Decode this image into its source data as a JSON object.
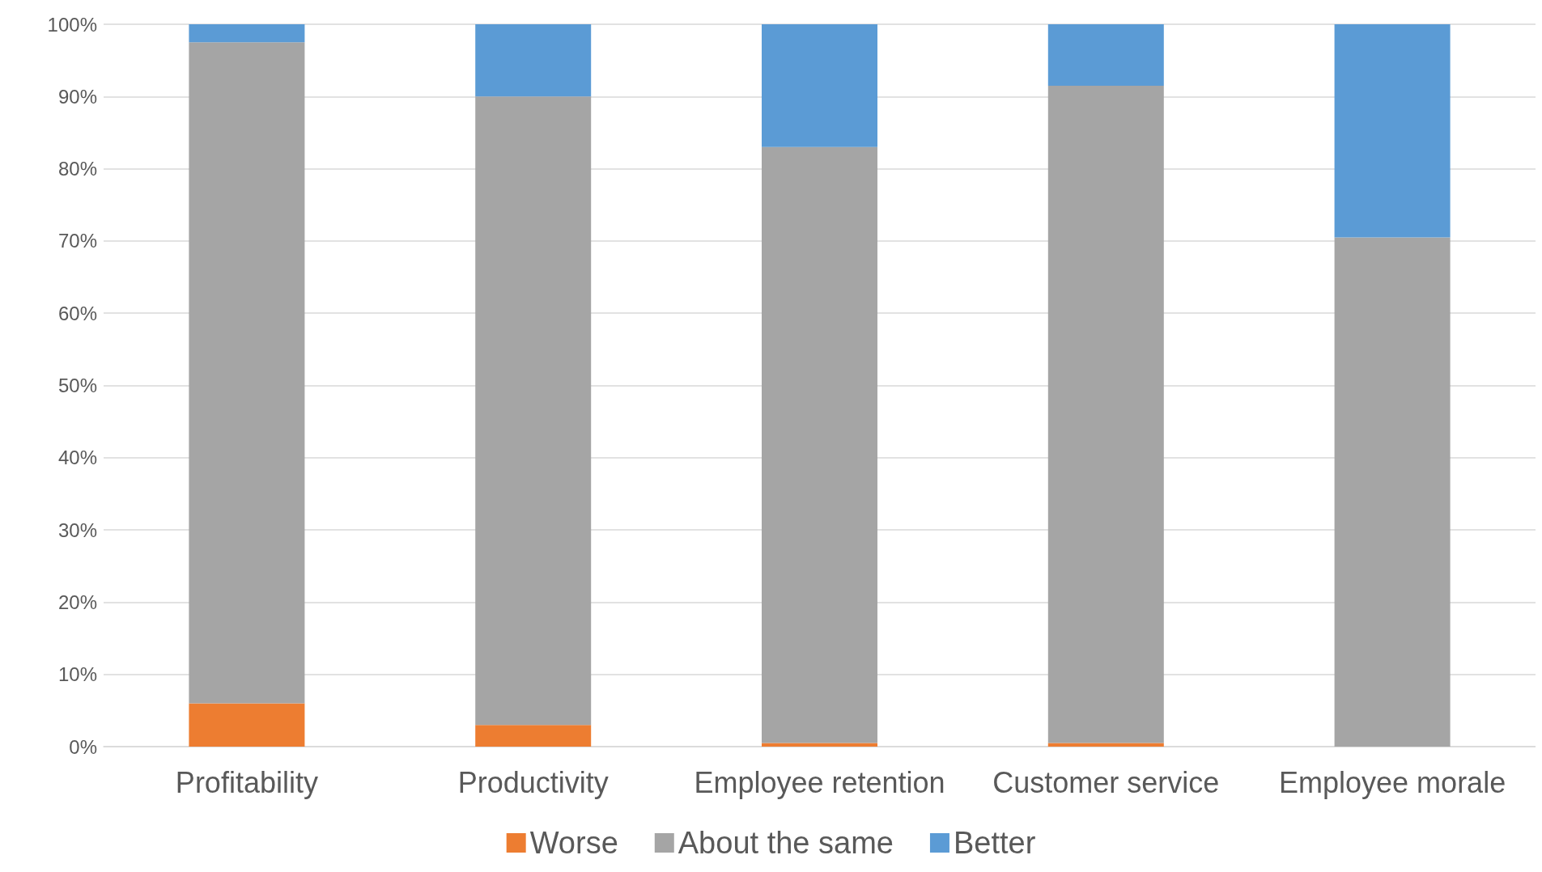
{
  "chart_data": {
    "type": "bar",
    "stacked": true,
    "categories": [
      "Profitability",
      "Productivity",
      "Employee retention",
      "Customer service",
      "Employee morale"
    ],
    "series": [
      {
        "name": "Worse",
        "color": "#ed7d31",
        "values": [
          6,
          3,
          0.5,
          0.5,
          0
        ]
      },
      {
        "name": "About the same",
        "color": "#a5a5a5",
        "values": [
          91.5,
          87,
          82.5,
          91,
          70.5
        ]
      },
      {
        "name": "Better",
        "color": "#5b9bd5",
        "values": [
          2.5,
          10,
          17,
          8.5,
          29.5
        ]
      }
    ],
    "ylim": [
      0,
      100
    ],
    "yticks": [
      {
        "value": 0,
        "label": "0%"
      },
      {
        "value": 10,
        "label": "10%"
      },
      {
        "value": 20,
        "label": "20%"
      },
      {
        "value": 30,
        "label": "30%"
      },
      {
        "value": 40,
        "label": "40%"
      },
      {
        "value": 50,
        "label": "50%"
      },
      {
        "value": 60,
        "label": "60%"
      },
      {
        "value": 70,
        "label": "70%"
      },
      {
        "value": 80,
        "label": "80%"
      },
      {
        "value": 90,
        "label": "90%"
      },
      {
        "value": 100,
        "label": "100%"
      }
    ],
    "grid": "y",
    "legend": "bottom"
  }
}
